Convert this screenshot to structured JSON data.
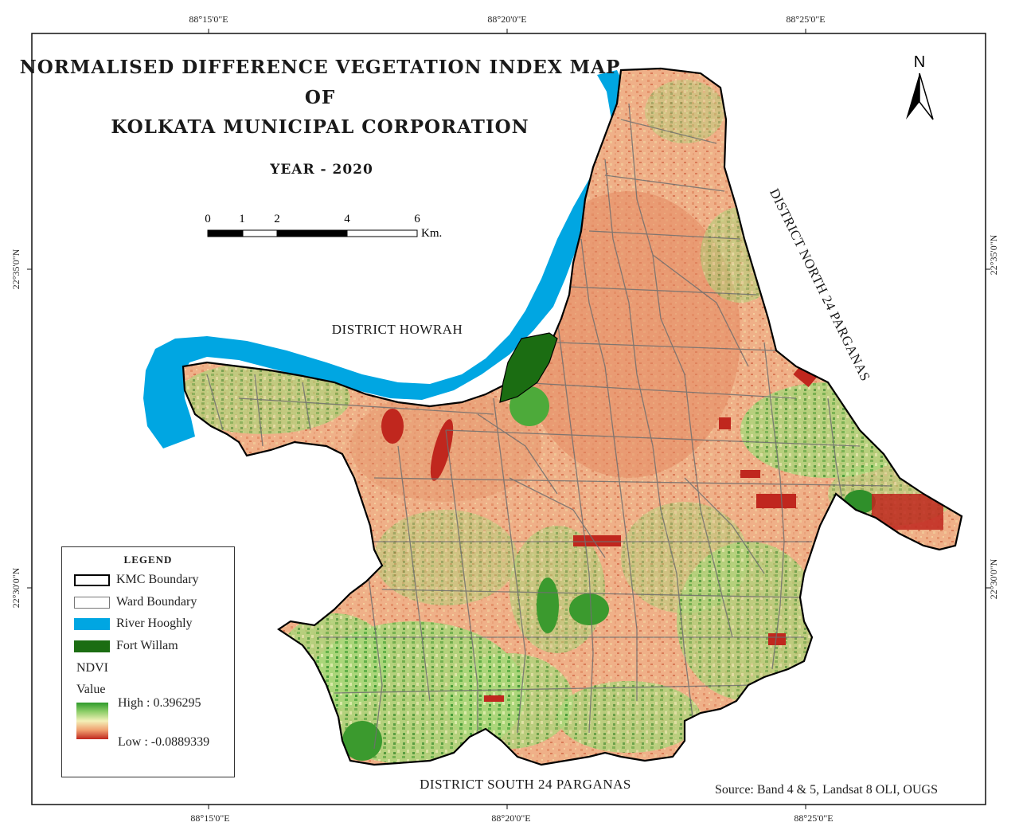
{
  "title": {
    "line1": "NORMALISED DIFFERENCE VEGETATION INDEX MAP",
    "line2": "OF",
    "line3": "KOLKATA MUNICIPAL CORPORATION",
    "year": "YEAR - 2020"
  },
  "grid": {
    "top": [
      "88°15'0\"E",
      "88°20'0\"E",
      "88°25'0\"E"
    ],
    "bottom": [
      "88°15'0\"E",
      "88°20'0\"E",
      "88°25'0\"E"
    ],
    "left": [
      "22°35'0\"N",
      "22°30'0\"N"
    ],
    "right": [
      "22°35'0\"N",
      "22°30'0\"N"
    ]
  },
  "scale_bar": {
    "ticks": [
      "0",
      "1",
      "2",
      "4",
      "6"
    ],
    "unit": "Km."
  },
  "north_arrow": {
    "label": "N",
    "icon": "north-arrow-icon"
  },
  "districts": {
    "howrah": "DISTRICT HOWRAH",
    "north": "DISTRICT NORTH 24 PARGANAS",
    "south": "DISTRICT SOUTH 24 PARGANAS"
  },
  "legend": {
    "heading": "LEGEND",
    "items": [
      {
        "label": "KMC Boundary",
        "color": "#ffffff",
        "border": "#000000"
      },
      {
        "label": "Ward Boundary",
        "color": "#ffffff",
        "border": "#777777"
      },
      {
        "label": "River Hooghly",
        "color": "#00a6e2",
        "border": "#00a6e2"
      },
      {
        "label": "Fort Willam",
        "color": "#1b6d12",
        "border": "#1b6d12"
      }
    ],
    "ndvi_label": "NDVI",
    "value_label": "Value",
    "high": "High : 0.396295",
    "low": "Low : -0.0889339"
  },
  "colors": {
    "river": "#00a6e2",
    "fort_william": "#1b6d12",
    "ndvi_high": "#2f9a2b",
    "ndvi_mid": "#f3f0b8",
    "ndvi_low": "#c0271e",
    "urban": "#e8a07a"
  },
  "source": "Source: Band 4 & 5, Landsat 8 OLI, OUGS"
}
